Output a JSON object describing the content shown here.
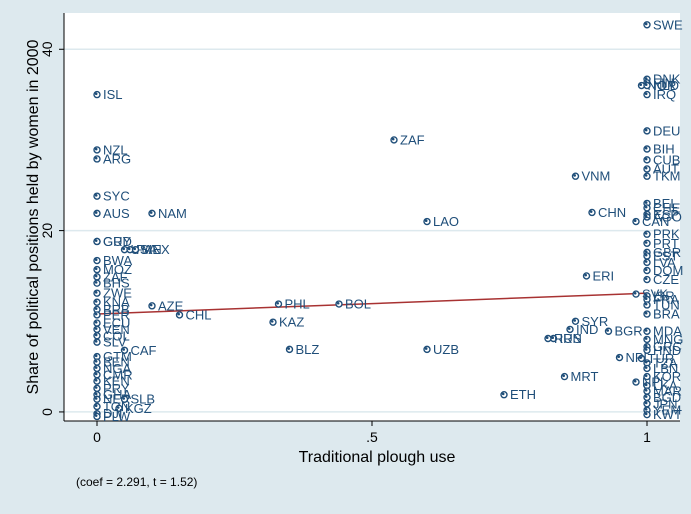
{
  "chart_data": {
    "type": "scatter",
    "xlabel": "Traditional plough use",
    "ylabel": "Share of political positions held by women in 2000",
    "xlim": [
      -0.06,
      1.06
    ],
    "ylim": [
      -1,
      44
    ],
    "xticks": [
      {
        "v": 0,
        "t": "0"
      },
      {
        "v": 0.5,
        "t": ".5"
      },
      {
        "v": 1,
        "t": "1"
      }
    ],
    "yticks": [
      {
        "v": 0,
        "t": "0"
      },
      {
        "v": 20,
        "t": "20"
      },
      {
        "v": 40,
        "t": "40"
      }
    ],
    "note": "(coef = 2.291, t = 1.52)",
    "fit_line": {
      "x": [
        0,
        1
      ],
      "y": [
        10.8,
        13.1
      ]
    },
    "colors": {
      "marker": "#1f4e79",
      "fit": "#a83232",
      "plot_bg": "#ffffff",
      "outer_bg": "#dde9ee",
      "grid": "#dde9ee"
    },
    "grid": true,
    "points": [
      {
        "x": 1.0,
        "y": 42.7,
        "label": "SWE"
      },
      {
        "x": 1.0,
        "y": 36.7,
        "label": "DNK"
      },
      {
        "x": 1.0,
        "y": 36.3,
        "label": "FIN"
      },
      {
        "x": 0.99,
        "y": 36.0,
        "label": "NOR"
      },
      {
        "x": 1.0,
        "y": 36.0,
        "label": "NLD"
      },
      {
        "x": 1.0,
        "y": 35.0,
        "label": "IRQ"
      },
      {
        "x": 1.0,
        "y": 31.0,
        "label": "DEU"
      },
      {
        "x": 1.0,
        "y": 29.0,
        "label": "BIH"
      },
      {
        "x": 1.0,
        "y": 27.8,
        "label": "CUB"
      },
      {
        "x": 1.0,
        "y": 26.8,
        "label": "AUT"
      },
      {
        "x": 1.0,
        "y": 26.0,
        "label": "TKM"
      },
      {
        "x": 1.0,
        "y": 23.0,
        "label": "BEL"
      },
      {
        "x": 1.0,
        "y": 22.5,
        "label": "CHE"
      },
      {
        "x": 1.0,
        "y": 21.8,
        "label": "ESP"
      },
      {
        "x": 1.0,
        "y": 21.5,
        "label": "AGO"
      },
      {
        "x": 0.98,
        "y": 21.0,
        "label": "CAN"
      },
      {
        "x": 1.0,
        "y": 19.6,
        "label": "PRK"
      },
      {
        "x": 1.0,
        "y": 18.6,
        "label": "PRT"
      },
      {
        "x": 1.0,
        "y": 17.6,
        "label": "GBR"
      },
      {
        "x": 1.0,
        "y": 17.2,
        "label": "EST"
      },
      {
        "x": 1.0,
        "y": 16.5,
        "label": "LVA"
      },
      {
        "x": 1.0,
        "y": 15.6,
        "label": "DOM"
      },
      {
        "x": 1.0,
        "y": 14.6,
        "label": "CZE"
      },
      {
        "x": 0.98,
        "y": 13.0,
        "label": "SVK"
      },
      {
        "x": 1.0,
        "y": 12.8,
        "label": "ISR"
      },
      {
        "x": 1.0,
        "y": 12.4,
        "label": "FRA"
      },
      {
        "x": 1.0,
        "y": 11.8,
        "label": "TUN"
      },
      {
        "x": 1.0,
        "y": 10.8,
        "label": "BRA"
      },
      {
        "x": 1.0,
        "y": 8.9,
        "label": "MDA"
      },
      {
        "x": 1.0,
        "y": 8.0,
        "label": "MNG"
      },
      {
        "x": 1.0,
        "y": 7.2,
        "label": "GRC"
      },
      {
        "x": 1.0,
        "y": 6.8,
        "label": "HND"
      },
      {
        "x": 0.99,
        "y": 5.9,
        "label": "TUR"
      },
      {
        "x": 1.0,
        "y": 5.4,
        "label": "TZA"
      },
      {
        "x": 1.0,
        "y": 4.8,
        "label": "LBN"
      },
      {
        "x": 1.0,
        "y": 3.9,
        "label": "KOR"
      },
      {
        "x": 0.98,
        "y": 3.3,
        "label": "NPL"
      },
      {
        "x": 1.0,
        "y": 2.9,
        "label": "LKA"
      },
      {
        "x": 1.0,
        "y": 2.3,
        "label": "MAR"
      },
      {
        "x": 1.0,
        "y": 1.6,
        "label": "BGD"
      },
      {
        "x": 1.0,
        "y": 0.9,
        "label": "JPN"
      },
      {
        "x": 1.0,
        "y": 0.2,
        "label": "YEM"
      },
      {
        "x": 1.0,
        "y": -0.3,
        "label": "KWT"
      },
      {
        "x": 0.0,
        "y": 35.0,
        "label": "ISL"
      },
      {
        "x": 0.0,
        "y": 28.9,
        "label": "NZL"
      },
      {
        "x": 0.0,
        "y": 27.9,
        "label": "ARG"
      },
      {
        "x": 0.0,
        "y": 23.8,
        "label": "SYC"
      },
      {
        "x": 0.0,
        "y": 21.9,
        "label": "AUS"
      },
      {
        "x": 0.1,
        "y": 21.9,
        "label": "NAM"
      },
      {
        "x": 0.0,
        "y": 18.8,
        "label": "GUY"
      },
      {
        "x": 0.0,
        "y": 18.8,
        "label": "GRD"
      },
      {
        "x": 0.05,
        "y": 17.9,
        "label": "USA"
      },
      {
        "x": 0.06,
        "y": 17.9,
        "label": "PAN"
      },
      {
        "x": 0.07,
        "y": 17.9,
        "label": "MEX"
      },
      {
        "x": 0.0,
        "y": 16.7,
        "label": "BWA"
      },
      {
        "x": 0.0,
        "y": 15.7,
        "label": "MOZ"
      },
      {
        "x": 0.0,
        "y": 14.9,
        "label": "ZAF"
      },
      {
        "x": 0.0,
        "y": 14.2,
        "label": "BHS"
      },
      {
        "x": 0.0,
        "y": 13.1,
        "label": "ZWE"
      },
      {
        "x": 0.0,
        "y": 12.1,
        "label": "KNA"
      },
      {
        "x": 0.1,
        "y": 11.7,
        "label": "AZE"
      },
      {
        "x": 0.0,
        "y": 11.3,
        "label": "BRB"
      },
      {
        "x": 0.0,
        "y": 10.7,
        "label": "PER"
      },
      {
        "x": 0.15,
        "y": 10.7,
        "label": "CHL"
      },
      {
        "x": 0.0,
        "y": 9.8,
        "label": "ECU"
      },
      {
        "x": 0.0,
        "y": 9.1,
        "label": "VEN"
      },
      {
        "x": 0.0,
        "y": 8.4,
        "label": "COL"
      },
      {
        "x": 0.0,
        "y": 7.7,
        "label": "SLV"
      },
      {
        "x": 0.05,
        "y": 6.8,
        "label": "CAF"
      },
      {
        "x": 0.0,
        "y": 6.1,
        "label": "GTM"
      },
      {
        "x": 0.0,
        "y": 5.5,
        "label": "BEN"
      },
      {
        "x": 0.0,
        "y": 4.8,
        "label": "NGA"
      },
      {
        "x": 0.0,
        "y": 4.1,
        "label": "CMR"
      },
      {
        "x": 0.0,
        "y": 3.4,
        "label": "KEN"
      },
      {
        "x": 0.0,
        "y": 2.6,
        "label": "PRY"
      },
      {
        "x": 0.0,
        "y": 1.9,
        "label": "GHA"
      },
      {
        "x": 0.0,
        "y": 1.4,
        "label": "NER"
      },
      {
        "x": 0.05,
        "y": 1.4,
        "label": "SLB"
      },
      {
        "x": 0.0,
        "y": 0.6,
        "label": "TON"
      },
      {
        "x": 0.04,
        "y": 0.4,
        "label": "KGZ"
      },
      {
        "x": 0.0,
        "y": -0.2,
        "label": "DJI"
      },
      {
        "x": 0.0,
        "y": -0.5,
        "label": "PLW"
      },
      {
        "x": 0.33,
        "y": 11.9,
        "label": "PHL"
      },
      {
        "x": 0.44,
        "y": 11.9,
        "label": "BOL"
      },
      {
        "x": 0.32,
        "y": 9.9,
        "label": "KAZ"
      },
      {
        "x": 0.35,
        "y": 6.9,
        "label": "BLZ"
      },
      {
        "x": 0.6,
        "y": 6.9,
        "label": "UZB"
      },
      {
        "x": 0.54,
        "y": 30.0,
        "label": "ZAF"
      },
      {
        "x": 0.6,
        "y": 21.0,
        "label": "LAO"
      },
      {
        "x": 0.87,
        "y": 26.0,
        "label": "VNM"
      },
      {
        "x": 0.9,
        "y": 22.0,
        "label": "CHN"
      },
      {
        "x": 0.89,
        "y": 15.0,
        "label": "ERI"
      },
      {
        "x": 0.87,
        "y": 10.0,
        "label": "SYR"
      },
      {
        "x": 0.86,
        "y": 9.1,
        "label": "IND"
      },
      {
        "x": 0.83,
        "y": 8.1,
        "label": "IRN"
      },
      {
        "x": 0.82,
        "y": 8.1,
        "label": "RUS"
      },
      {
        "x": 0.93,
        "y": 8.9,
        "label": "BGR"
      },
      {
        "x": 0.95,
        "y": 6.0,
        "label": "NPL"
      },
      {
        "x": 0.85,
        "y": 3.9,
        "label": "MRT"
      },
      {
        "x": 0.74,
        "y": 1.9,
        "label": "ETH"
      }
    ]
  }
}
